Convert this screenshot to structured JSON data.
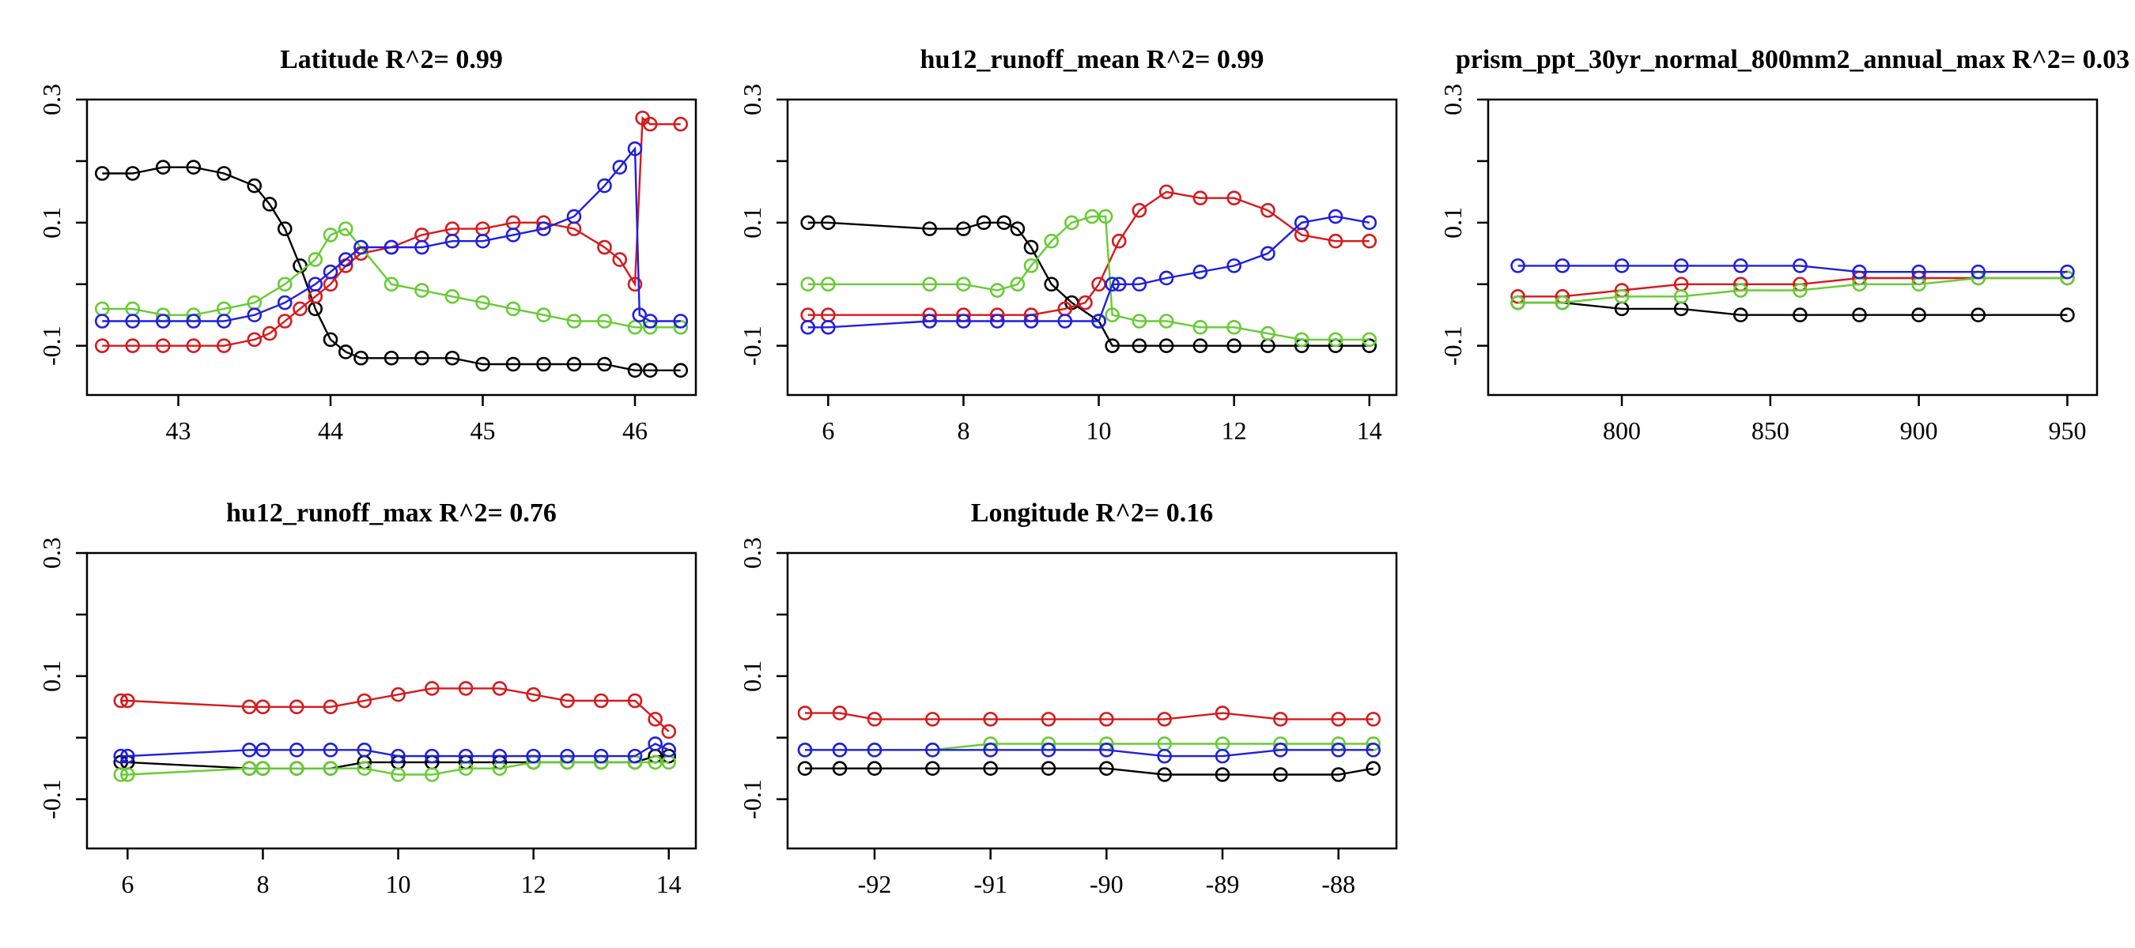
{
  "colors": {
    "black": "#000000",
    "red": "#d7191c",
    "green": "#66cc33",
    "blue": "#1f1fe0"
  },
  "chart_data": [
    {
      "type": "line",
      "title": "Latitude R^2= 0.99",
      "xlim": [
        42.4,
        46.4
      ],
      "ylim": [
        -0.18,
        0.3
      ],
      "xticks": [
        43,
        44,
        45,
        46
      ],
      "yticks": [
        -0.1,
        0.1,
        0.3
      ],
      "series": [
        {
          "color": "black",
          "x": [
            42.5,
            42.7,
            42.9,
            43.1,
            43.3,
            43.5,
            43.6,
            43.7,
            43.8,
            43.9,
            44.0,
            44.1,
            44.2,
            44.4,
            44.6,
            44.8,
            45.0,
            45.2,
            45.4,
            45.6,
            45.8,
            46.0,
            46.1,
            46.3
          ],
          "y": [
            0.18,
            0.18,
            0.19,
            0.19,
            0.18,
            0.16,
            0.13,
            0.09,
            0.03,
            -0.04,
            -0.09,
            -0.11,
            -0.12,
            -0.12,
            -0.12,
            -0.12,
            -0.13,
            -0.13,
            -0.13,
            -0.13,
            -0.13,
            -0.14,
            -0.14,
            -0.14
          ]
        },
        {
          "color": "red",
          "x": [
            42.5,
            42.7,
            42.9,
            43.1,
            43.3,
            43.5,
            43.6,
            43.7,
            43.8,
            43.9,
            44.0,
            44.1,
            44.2,
            44.4,
            44.6,
            44.8,
            45.0,
            45.2,
            45.4,
            45.6,
            45.8,
            45.9,
            46.0,
            46.05,
            46.1,
            46.3
          ],
          "y": [
            -0.1,
            -0.1,
            -0.1,
            -0.1,
            -0.1,
            -0.09,
            -0.08,
            -0.06,
            -0.04,
            -0.02,
            0.0,
            0.03,
            0.05,
            0.06,
            0.08,
            0.09,
            0.09,
            0.1,
            0.1,
            0.09,
            0.06,
            0.04,
            0.0,
            0.27,
            0.26,
            0.26
          ]
        },
        {
          "color": "green",
          "x": [
            42.5,
            42.7,
            42.9,
            43.1,
            43.3,
            43.5,
            43.7,
            43.9,
            44.0,
            44.1,
            44.2,
            44.4,
            44.6,
            44.8,
            45.0,
            45.2,
            45.4,
            45.6,
            45.8,
            46.0,
            46.1,
            46.3
          ],
          "y": [
            -0.04,
            -0.04,
            -0.05,
            -0.05,
            -0.04,
            -0.03,
            0.0,
            0.04,
            0.08,
            0.09,
            0.06,
            0.0,
            -0.01,
            -0.02,
            -0.03,
            -0.04,
            -0.05,
            -0.06,
            -0.06,
            -0.07,
            -0.07,
            -0.07
          ]
        },
        {
          "color": "blue",
          "x": [
            42.5,
            42.7,
            42.9,
            43.1,
            43.3,
            43.5,
            43.7,
            43.9,
            44.0,
            44.1,
            44.2,
            44.4,
            44.6,
            44.8,
            45.0,
            45.2,
            45.4,
            45.6,
            45.8,
            45.9,
            46.0,
            46.03,
            46.1,
            46.3
          ],
          "y": [
            -0.06,
            -0.06,
            -0.06,
            -0.06,
            -0.06,
            -0.05,
            -0.03,
            0.0,
            0.02,
            0.04,
            0.06,
            0.06,
            0.06,
            0.07,
            0.07,
            0.08,
            0.09,
            0.11,
            0.16,
            0.19,
            0.22,
            -0.05,
            -0.06,
            -0.06
          ]
        }
      ]
    },
    {
      "type": "line",
      "title": "hu12_runoff_mean R^2= 0.99",
      "xlim": [
        5.4,
        14.4
      ],
      "ylim": [
        -0.18,
        0.3
      ],
      "xticks": [
        6,
        8,
        10,
        12,
        14
      ],
      "yticks": [
        -0.1,
        0.1,
        0.3
      ],
      "series": [
        {
          "color": "black",
          "x": [
            5.7,
            6.0,
            7.5,
            8.0,
            8.3,
            8.6,
            8.8,
            9.0,
            9.3,
            9.6,
            10.0,
            10.2,
            10.6,
            11.0,
            11.5,
            12.0,
            12.5,
            13.0,
            13.5,
            14.0
          ],
          "y": [
            0.1,
            0.1,
            0.09,
            0.09,
            0.1,
            0.1,
            0.09,
            0.06,
            0.0,
            -0.03,
            -0.06,
            -0.1,
            -0.1,
            -0.1,
            -0.1,
            -0.1,
            -0.1,
            -0.1,
            -0.1,
            -0.1
          ]
        },
        {
          "color": "red",
          "x": [
            5.7,
            6.0,
            7.5,
            8.0,
            8.5,
            9.0,
            9.5,
            9.8,
            10.0,
            10.3,
            10.6,
            11.0,
            11.5,
            12.0,
            12.5,
            13.0,
            13.5,
            14.0
          ],
          "y": [
            -0.05,
            -0.05,
            -0.05,
            -0.05,
            -0.05,
            -0.05,
            -0.04,
            -0.03,
            0.0,
            0.07,
            0.12,
            0.15,
            0.14,
            0.14,
            0.12,
            0.08,
            0.07,
            0.07
          ]
        },
        {
          "color": "green",
          "x": [
            5.7,
            6.0,
            7.5,
            8.0,
            8.5,
            8.8,
            9.0,
            9.3,
            9.6,
            9.9,
            10.1,
            10.2,
            10.6,
            11.0,
            11.5,
            12.0,
            12.5,
            13.0,
            13.5,
            14.0
          ],
          "y": [
            0.0,
            0.0,
            0.0,
            0.0,
            -0.01,
            0.0,
            0.03,
            0.07,
            0.1,
            0.11,
            0.11,
            -0.05,
            -0.06,
            -0.06,
            -0.07,
            -0.07,
            -0.08,
            -0.09,
            -0.09,
            -0.09
          ]
        },
        {
          "color": "blue",
          "x": [
            5.7,
            6.0,
            7.5,
            8.0,
            8.5,
            9.0,
            9.5,
            10.0,
            10.2,
            10.3,
            10.6,
            11.0,
            11.5,
            12.0,
            12.5,
            13.0,
            13.5,
            14.0
          ],
          "y": [
            -0.07,
            -0.07,
            -0.06,
            -0.06,
            -0.06,
            -0.06,
            -0.06,
            -0.06,
            0.0,
            0.0,
            0.0,
            0.01,
            0.02,
            0.03,
            0.05,
            0.1,
            0.11,
            0.1
          ]
        }
      ]
    },
    {
      "type": "line",
      "title": "prism_ppt_30yr_normal_800mm2_annual_max R^2= 0.03",
      "xlim": [
        755,
        960
      ],
      "ylim": [
        -0.18,
        0.3
      ],
      "xticks": [
        800,
        850,
        900,
        950
      ],
      "yticks": [
        -0.1,
        0.1,
        0.3
      ],
      "series": [
        {
          "color": "black",
          "x": [
            765,
            780,
            800,
            820,
            840,
            860,
            880,
            900,
            920,
            950
          ],
          "y": [
            -0.03,
            -0.03,
            -0.04,
            -0.04,
            -0.05,
            -0.05,
            -0.05,
            -0.05,
            -0.05,
            -0.05
          ]
        },
        {
          "color": "red",
          "x": [
            765,
            780,
            800,
            820,
            840,
            860,
            880,
            900,
            920,
            950
          ],
          "y": [
            -0.02,
            -0.02,
            -0.01,
            0.0,
            0.0,
            0.0,
            0.01,
            0.01,
            0.01,
            0.01
          ]
        },
        {
          "color": "green",
          "x": [
            765,
            780,
            800,
            820,
            840,
            860,
            880,
            900,
            920,
            950
          ],
          "y": [
            -0.03,
            -0.03,
            -0.02,
            -0.02,
            -0.01,
            -0.01,
            0.0,
            0.0,
            0.01,
            0.01
          ]
        },
        {
          "color": "blue",
          "x": [
            765,
            780,
            800,
            820,
            840,
            860,
            880,
            900,
            920,
            950
          ],
          "y": [
            0.03,
            0.03,
            0.03,
            0.03,
            0.03,
            0.03,
            0.02,
            0.02,
            0.02,
            0.02
          ]
        }
      ]
    },
    {
      "type": "line",
      "title": "hu12_runoff_max R^2= 0.76",
      "xlim": [
        5.4,
        14.4
      ],
      "ylim": [
        -0.18,
        0.3
      ],
      "xticks": [
        6,
        8,
        10,
        12,
        14
      ],
      "yticks": [
        -0.1,
        0.1,
        0.3
      ],
      "series": [
        {
          "color": "black",
          "x": [
            5.9,
            6.0,
            7.8,
            8.0,
            8.5,
            9.0,
            9.5,
            10.0,
            10.5,
            11.0,
            11.5,
            12.0,
            12.5,
            13.0,
            13.5,
            13.8,
            14.0
          ],
          "y": [
            -0.04,
            -0.04,
            -0.05,
            -0.05,
            -0.05,
            -0.05,
            -0.04,
            -0.04,
            -0.04,
            -0.04,
            -0.04,
            -0.04,
            -0.04,
            -0.04,
            -0.04,
            -0.03,
            -0.03
          ]
        },
        {
          "color": "red",
          "x": [
            5.9,
            6.0,
            7.8,
            8.0,
            8.5,
            9.0,
            9.5,
            10.0,
            10.5,
            11.0,
            11.5,
            12.0,
            12.5,
            13.0,
            13.5,
            13.8,
            14.0
          ],
          "y": [
            0.06,
            0.06,
            0.05,
            0.05,
            0.05,
            0.05,
            0.06,
            0.07,
            0.08,
            0.08,
            0.08,
            0.07,
            0.06,
            0.06,
            0.06,
            0.03,
            0.01
          ]
        },
        {
          "color": "green",
          "x": [
            5.9,
            6.0,
            7.8,
            8.0,
            8.5,
            9.0,
            9.5,
            10.0,
            10.5,
            11.0,
            11.5,
            12.0,
            12.5,
            13.0,
            13.5,
            13.8,
            14.0
          ],
          "y": [
            -0.06,
            -0.06,
            -0.05,
            -0.05,
            -0.05,
            -0.05,
            -0.05,
            -0.06,
            -0.06,
            -0.05,
            -0.05,
            -0.04,
            -0.04,
            -0.04,
            -0.04,
            -0.04,
            -0.04
          ]
        },
        {
          "color": "blue",
          "x": [
            5.9,
            6.0,
            7.8,
            8.0,
            8.5,
            9.0,
            9.5,
            10.0,
            10.5,
            11.0,
            11.5,
            12.0,
            12.5,
            13.0,
            13.5,
            13.8,
            14.0
          ],
          "y": [
            -0.03,
            -0.03,
            -0.02,
            -0.02,
            -0.02,
            -0.02,
            -0.02,
            -0.03,
            -0.03,
            -0.03,
            -0.03,
            -0.03,
            -0.03,
            -0.03,
            -0.03,
            -0.01,
            -0.02
          ]
        }
      ]
    },
    {
      "type": "line",
      "title": "Longitude R^2= 0.16",
      "xlim": [
        -92.75,
        -87.5
      ],
      "ylim": [
        -0.18,
        0.3
      ],
      "xticks": [
        -92,
        -91,
        -90,
        -89,
        -88
      ],
      "yticks": [
        -0.1,
        0.1,
        0.3
      ],
      "series": [
        {
          "color": "black",
          "x": [
            -92.6,
            -92.3,
            -92.0,
            -91.5,
            -91.0,
            -90.5,
            -90.0,
            -89.5,
            -89.0,
            -88.5,
            -88.0,
            -87.7
          ],
          "y": [
            -0.05,
            -0.05,
            -0.05,
            -0.05,
            -0.05,
            -0.05,
            -0.05,
            -0.06,
            -0.06,
            -0.06,
            -0.06,
            -0.05
          ]
        },
        {
          "color": "red",
          "x": [
            -92.6,
            -92.3,
            -92.0,
            -91.5,
            -91.0,
            -90.5,
            -90.0,
            -89.5,
            -89.0,
            -88.5,
            -88.0,
            -87.7
          ],
          "y": [
            0.04,
            0.04,
            0.03,
            0.03,
            0.03,
            0.03,
            0.03,
            0.03,
            0.04,
            0.03,
            0.03,
            0.03
          ]
        },
        {
          "color": "green",
          "x": [
            -92.6,
            -92.3,
            -92.0,
            -91.5,
            -91.0,
            -90.5,
            -90.0,
            -89.5,
            -89.0,
            -88.5,
            -88.0,
            -87.7
          ],
          "y": [
            -0.02,
            -0.02,
            -0.02,
            -0.02,
            -0.01,
            -0.01,
            -0.01,
            -0.01,
            -0.01,
            -0.01,
            -0.01,
            -0.01
          ]
        },
        {
          "color": "blue",
          "x": [
            -92.6,
            -92.3,
            -92.0,
            -91.5,
            -91.0,
            -90.5,
            -90.0,
            -89.5,
            -89.0,
            -88.5,
            -88.0,
            -87.7
          ],
          "y": [
            -0.02,
            -0.02,
            -0.02,
            -0.02,
            -0.02,
            -0.02,
            -0.02,
            -0.03,
            -0.03,
            -0.02,
            -0.02,
            -0.02
          ]
        }
      ]
    }
  ]
}
